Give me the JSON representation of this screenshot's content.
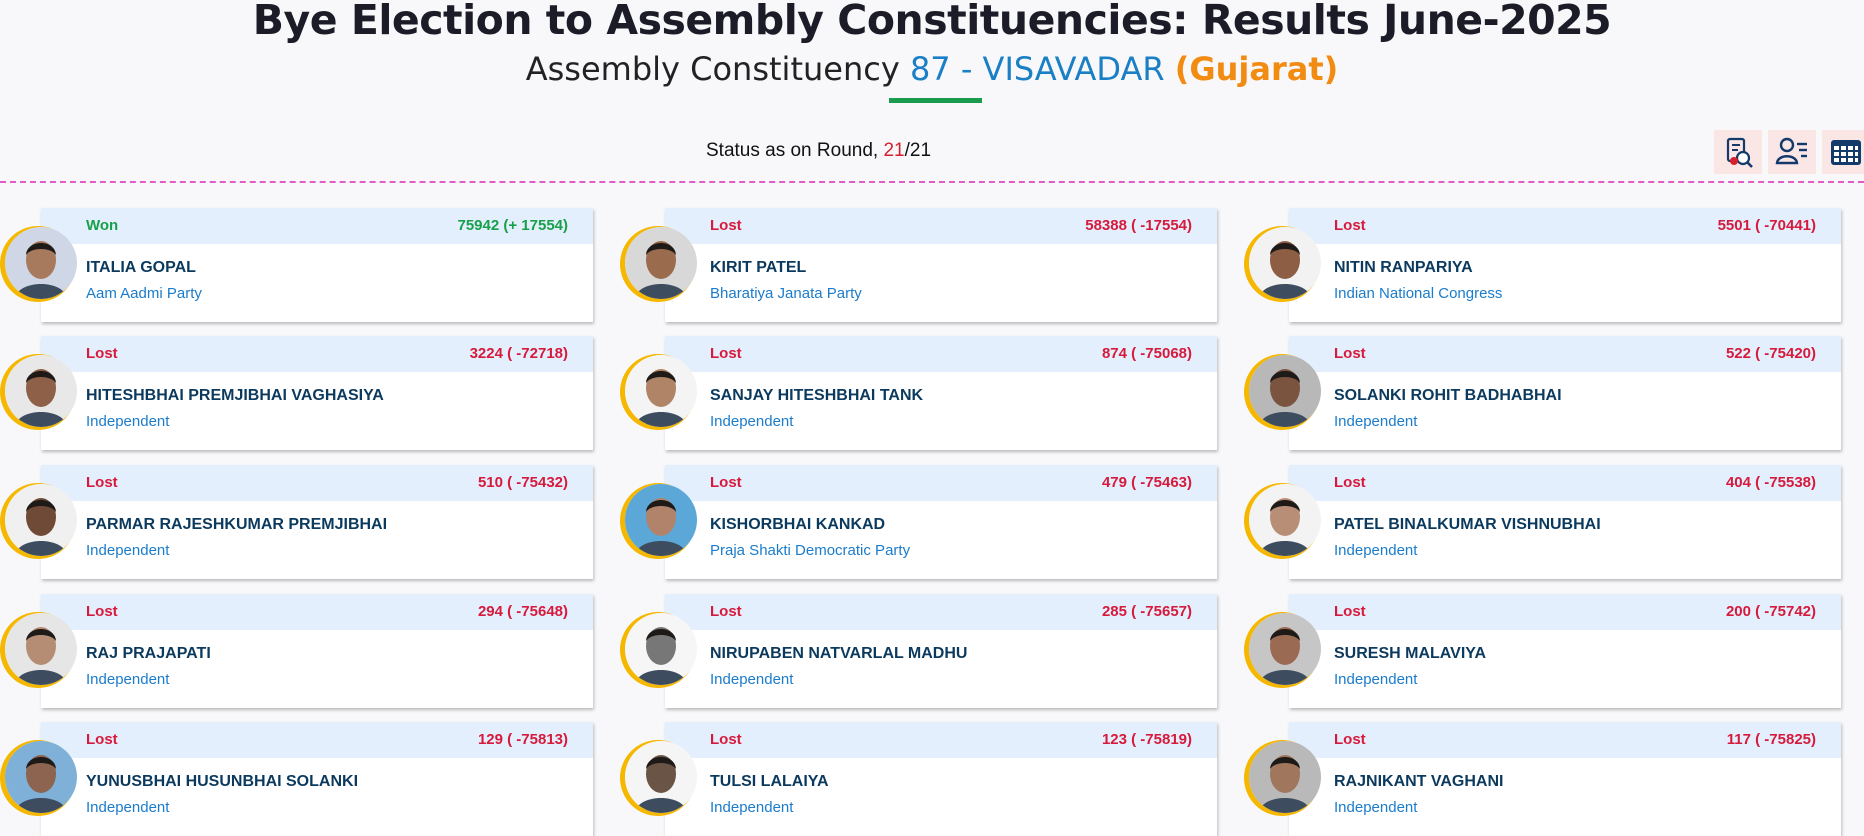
{
  "header": {
    "title": "Bye Election to Assembly Constituencies: Results June-2025",
    "subtitle_prefix": "Assembly Constituency",
    "ac_code": "87 - VISAVADAR",
    "state": "(Gujarat)"
  },
  "status": {
    "label": "Status as on Round,",
    "round_current": "21",
    "round_total": "/21"
  },
  "toolbar": [
    {
      "name": "report-icon"
    },
    {
      "name": "candidate-list-icon"
    },
    {
      "name": "table-grid-icon"
    }
  ],
  "candidates": [
    {
      "result": "Won",
      "votes": "75942 (+ 17554)",
      "name": "ITALIA GOPAL",
      "party": "Aam Aadmi Party",
      "skin": "#a77a5d",
      "bg": "#cfd6e6"
    },
    {
      "result": "Lost",
      "votes": "58388 ( -17554)",
      "name": "KIRIT PATEL",
      "party": "Bharatiya Janata Party",
      "skin": "#9b6b4e",
      "bg": "#d8d8d8"
    },
    {
      "result": "Lost",
      "votes": "5501 ( -70441)",
      "name": "NITIN RANPARIYA",
      "party": "Indian National Congress",
      "skin": "#8d5e43",
      "bg": "#f2f2f2"
    },
    {
      "result": "Lost",
      "votes": "3224 ( -72718)",
      "name": "HITESHBHAI PREMJIBHAI VAGHASIYA",
      "party": "Independent",
      "skin": "#8e6047",
      "bg": "#e8e8e8"
    },
    {
      "result": "Lost",
      "votes": "874 ( -75068)",
      "name": "SANJAY HITESHBHAI TANK",
      "party": "Independent",
      "skin": "#b08466",
      "bg": "#f4f4f4"
    },
    {
      "result": "Lost",
      "votes": "522 ( -75420)",
      "name": "SOLANKI ROHIT BADHABHAI",
      "party": "Independent",
      "skin": "#7b5440",
      "bg": "#b8b8b8"
    },
    {
      "result": "Lost",
      "votes": "510 ( -75432)",
      "name": "PARMAR RAJESHKUMAR PREMJIBHAI",
      "party": "Independent",
      "skin": "#6f4a36",
      "bg": "#f0f0f0"
    },
    {
      "result": "Lost",
      "votes": "479 ( -75463)",
      "name": "KISHORBHAI KANKAD",
      "party": "Praja Shakti Democratic Party",
      "skin": "#b0836a",
      "bg": "#5aa7d8"
    },
    {
      "result": "Lost",
      "votes": "404 ( -75538)",
      "name": "PATEL BINALKUMAR VISHNUBHAI",
      "party": "Independent",
      "skin": "#b88e76",
      "bg": "#f3f3f3"
    },
    {
      "result": "Lost",
      "votes": "294 ( -75648)",
      "name": "RAJ PRAJAPATI",
      "party": "Independent",
      "skin": "#b48d74",
      "bg": "#e6e6e6"
    },
    {
      "result": "Lost",
      "votes": "285 ( -75657)",
      "name": "NIRUPABEN NATVARLAL MADHU",
      "party": "Independent",
      "skin": "#777777",
      "bg": "#f6f6f6"
    },
    {
      "result": "Lost",
      "votes": "200 ( -75742)",
      "name": "SURESH MALAVIYA",
      "party": "Independent",
      "skin": "#9a6b52",
      "bg": "#c6c6c6"
    },
    {
      "result": "Lost",
      "votes": "129 ( -75813)",
      "name": "YUNUSBHAI HUSUNBHAI SOLANKI",
      "party": "Independent",
      "skin": "#8c6450",
      "bg": "#7fb0d8"
    },
    {
      "result": "Lost",
      "votes": "123 ( -75819)",
      "name": "TULSI LALAIYA",
      "party": "Independent",
      "skin": "#6a5446",
      "bg": "#f5f5f5"
    },
    {
      "result": "Lost",
      "votes": "117 ( -75825)",
      "name": "RAJNIKANT VAGHANI",
      "party": "Independent",
      "skin": "#a0765c",
      "bg": "#b9b9b9"
    }
  ]
}
